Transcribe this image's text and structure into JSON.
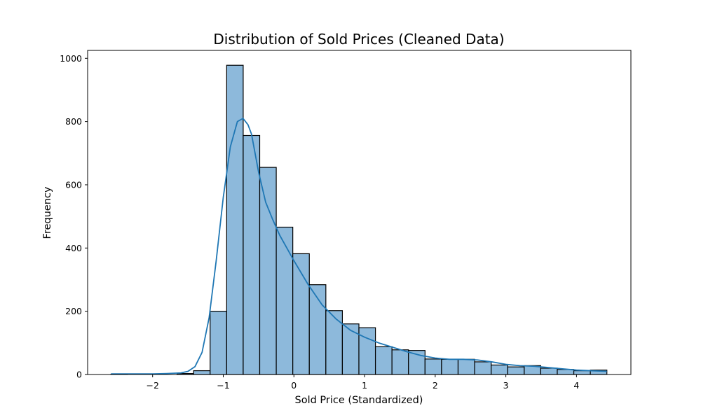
{
  "chart_data": {
    "type": "bar",
    "subtype": "histogram",
    "title": "Distribution of Sold Prices (Cleaned Data)",
    "xlabel": "Sold Price (Standardized)",
    "ylabel": "Frequency",
    "xlim": [
      -2.92,
      4.77
    ],
    "ylim": [
      0,
      1025
    ],
    "x_ticks": [
      -2,
      -1,
      0,
      1,
      2,
      3,
      4
    ],
    "x_tick_labels": [
      "−2",
      "−1",
      "0",
      "1",
      "2",
      "3",
      "4"
    ],
    "y_ticks": [
      0,
      200,
      400,
      600,
      800,
      1000
    ],
    "y_tick_labels": [
      "0",
      "200",
      "400",
      "600",
      "800",
      "1000"
    ],
    "grid": false,
    "bins": {
      "edges": [
        -2.59,
        -2.356,
        -2.122,
        -1.888,
        -1.654,
        -1.42,
        -1.186,
        -0.952,
        -0.718,
        -0.484,
        -0.25,
        -0.016,
        0.218,
        0.452,
        0.686,
        0.92,
        1.154,
        1.388,
        1.622,
        1.856,
        2.09,
        2.324,
        2.558,
        2.792,
        3.026,
        3.26,
        3.494,
        3.728,
        3.962,
        4.196,
        4.43
      ],
      "counts": [
        1,
        0,
        0,
        0,
        3,
        12,
        200,
        978,
        756,
        655,
        466,
        382,
        284,
        202,
        160,
        148,
        88,
        78,
        76,
        49,
        48,
        48,
        40,
        30,
        24,
        28,
        20,
        16,
        12,
        14
      ]
    },
    "kde": {
      "x": [
        -2.59,
        -2.3,
        -2.0,
        -1.8,
        -1.6,
        -1.5,
        -1.4,
        -1.3,
        -1.2,
        -1.1,
        -1.0,
        -0.9,
        -0.8,
        -0.72,
        -0.65,
        -0.6,
        -0.5,
        -0.4,
        -0.3,
        -0.2,
        -0.1,
        0.0,
        0.2,
        0.4,
        0.6,
        0.8,
        1.0,
        1.2,
        1.4,
        1.6,
        1.8,
        2.0,
        2.2,
        2.4,
        2.6,
        2.8,
        3.0,
        3.2,
        3.4,
        3.6,
        3.8,
        4.0,
        4.2,
        4.43
      ],
      "y": [
        2,
        2,
        2,
        3,
        5,
        10,
        25,
        70,
        180,
        360,
        560,
        720,
        800,
        810,
        790,
        760,
        640,
        545,
        490,
        440,
        400,
        360,
        285,
        220,
        175,
        140,
        118,
        100,
        86,
        72,
        60,
        52,
        48,
        48,
        46,
        40,
        32,
        28,
        26,
        22,
        18,
        14,
        12,
        10
      ]
    },
    "series": [
      {
        "values_from": "bins.counts",
        "color": "#8db9db",
        "edgecolor": "#000000"
      },
      {
        "values_from": "kde.y",
        "color": "#1f77b4"
      }
    ]
  }
}
